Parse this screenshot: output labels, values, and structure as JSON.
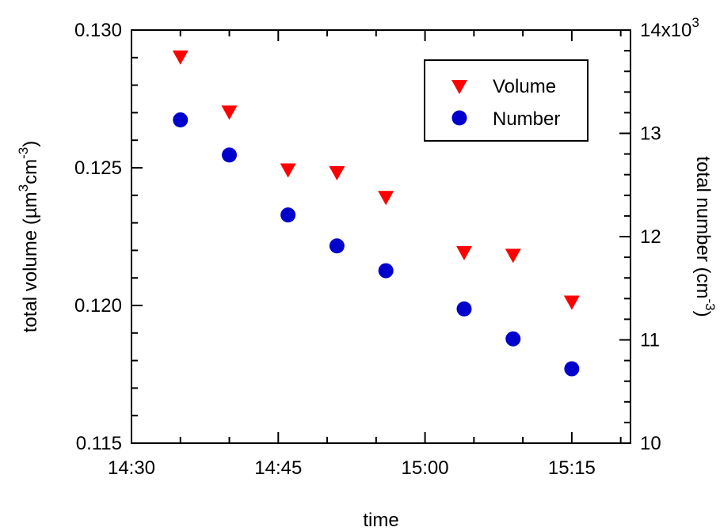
{
  "chart_data": {
    "type": "scatter",
    "x_axis": {
      "label": "time",
      "range": [
        "14:30",
        "15:21"
      ],
      "ticks": [
        "14:30",
        "14:45",
        "15:00",
        "15:15"
      ],
      "minor_tick_minutes": 5
    },
    "y_axis_left": {
      "label_parts": [
        "total volume (µm",
        "3",
        "cm",
        "-3",
        ")"
      ],
      "range": [
        0.115,
        0.13
      ],
      "ticks": [
        "0.115",
        "0.120",
        "0.125",
        "0.130"
      ],
      "tick_values": [
        0.115,
        0.12,
        0.125,
        0.13
      ],
      "minor_step": 0.001
    },
    "y_axis_right": {
      "label_parts": [
        "total number (cm",
        "-3",
        ")"
      ],
      "range": [
        10000,
        14000
      ],
      "ticks": [
        "10",
        "11",
        "12",
        "13",
        "14x10"
      ],
      "tick_values": [
        10000,
        11000,
        12000,
        13000,
        14000
      ],
      "top_tick_sup": "3",
      "minor_step": 200
    },
    "grid": false,
    "legend": {
      "position": "top-right"
    },
    "series": [
      {
        "name": "Volume",
        "axis": "left",
        "marker": "down-triangle",
        "color": "#ff0000",
        "points": [
          {
            "x": "14:35",
            "y": 0.129
          },
          {
            "x": "14:40",
            "y": 0.127
          },
          {
            "x": "14:46",
            "y": 0.1249
          },
          {
            "x": "14:51",
            "y": 0.1248
          },
          {
            "x": "14:56",
            "y": 0.1239
          },
          {
            "x": "15:04",
            "y": 0.1219
          },
          {
            "x": "15:09",
            "y": 0.1218
          },
          {
            "x": "15:15",
            "y": 0.1201
          }
        ]
      },
      {
        "name": "Number",
        "axis": "right",
        "marker": "circle",
        "color": "#0000cc",
        "points": [
          {
            "x": "14:35",
            "y": 13130
          },
          {
            "x": "14:40",
            "y": 12790
          },
          {
            "x": "14:46",
            "y": 12210
          },
          {
            "x": "14:51",
            "y": 11910
          },
          {
            "x": "14:56",
            "y": 11670
          },
          {
            "x": "15:04",
            "y": 11300
          },
          {
            "x": "15:09",
            "y": 11010
          },
          {
            "x": "15:15",
            "y": 10720
          }
        ]
      }
    ]
  }
}
